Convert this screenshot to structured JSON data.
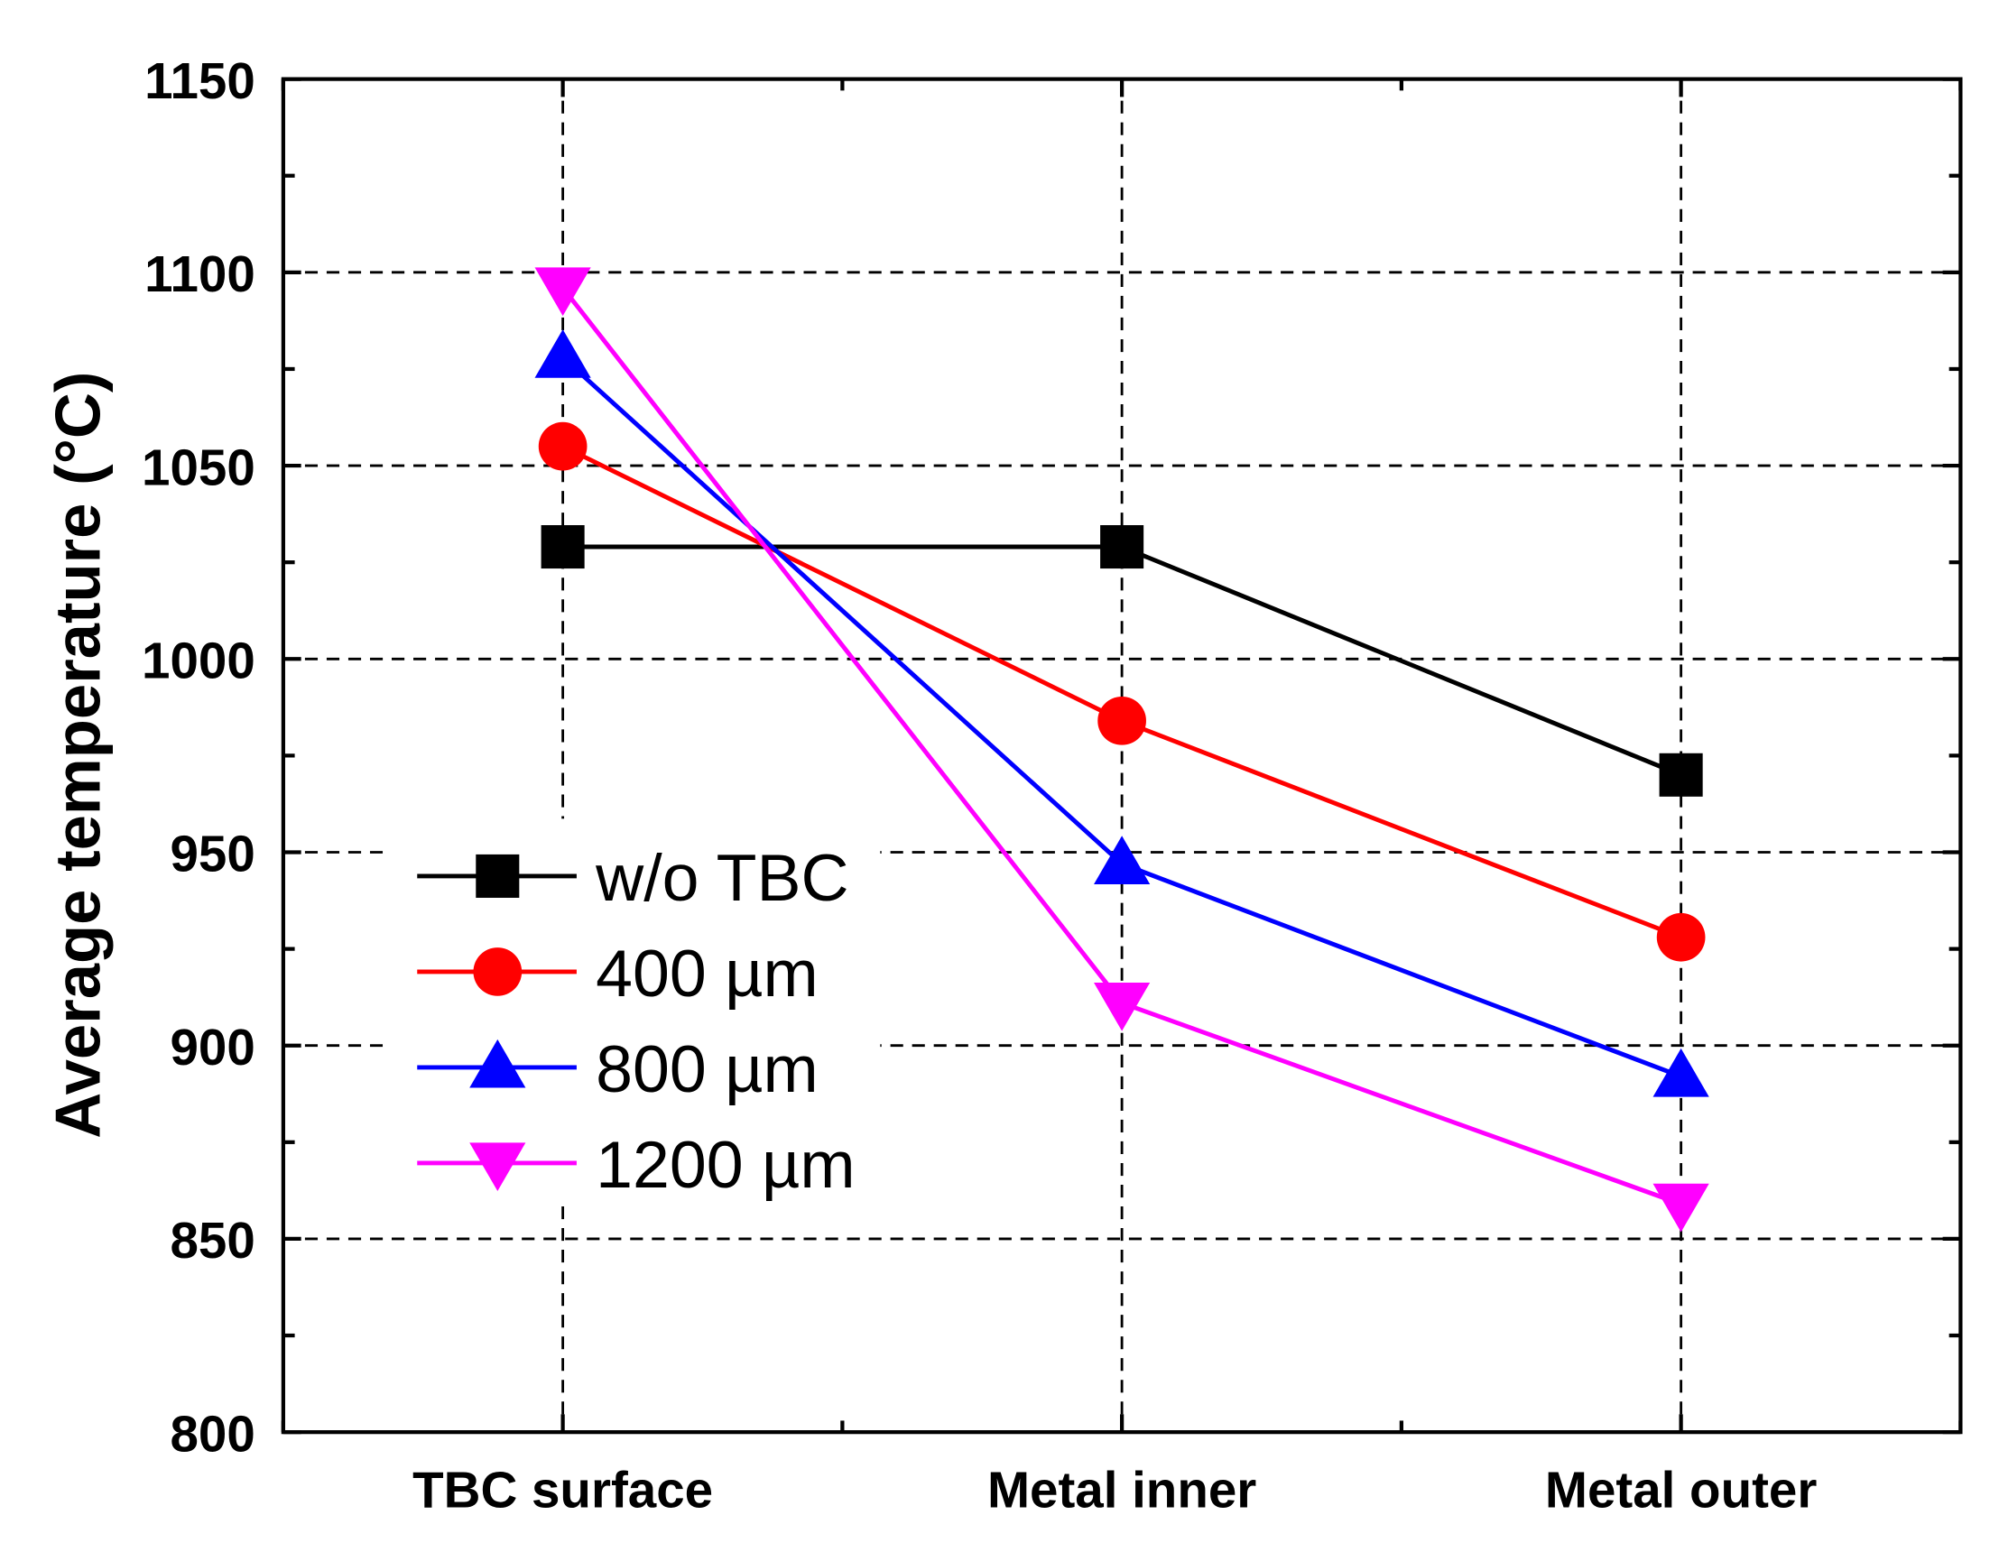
{
  "chart_data": {
    "type": "line",
    "title": "",
    "xlabel": "",
    "ylabel": "Average temperature (°C)",
    "categories": [
      "TBC surface",
      "Metal inner",
      "Metal outer"
    ],
    "ylim": [
      800,
      1150
    ],
    "yticks": [
      800,
      850,
      900,
      950,
      1000,
      1050,
      1100,
      1150
    ],
    "grid": true,
    "legend_position": "lower-left",
    "series": [
      {
        "name": "w/o TBC",
        "color": "#000000",
        "marker": "square",
        "values": [
          1029,
          1029,
          970
        ]
      },
      {
        "name": "400 µm",
        "color": "#ff0000",
        "marker": "circle",
        "values": [
          1055,
          984,
          928
        ]
      },
      {
        "name": "800 µm",
        "color": "#0000ff",
        "marker": "triangle-up",
        "values": [
          1078,
          947,
          892
        ]
      },
      {
        "name": "1200 µm",
        "color": "#ff00ff",
        "marker": "triangle-down",
        "values": [
          1096,
          911,
          859
        ]
      }
    ]
  }
}
